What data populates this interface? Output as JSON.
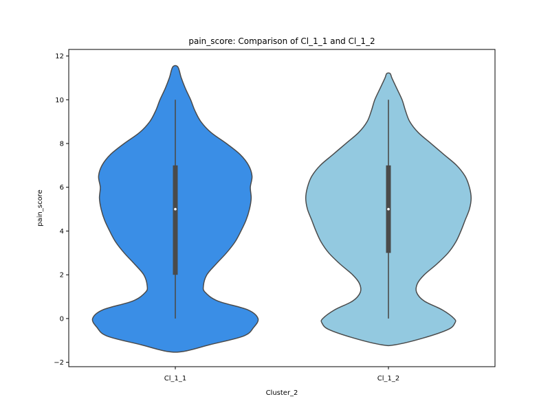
{
  "chart_data": {
    "type": "violin",
    "title": "pain_score: Comparison of Cl_1_1 and Cl_1_2",
    "xlabel": "Cluster_2",
    "ylabel": "pain_score",
    "ylim": [
      -2.2,
      12.3
    ],
    "yticks": [
      -2,
      0,
      2,
      4,
      6,
      8,
      10,
      12
    ],
    "yticklabels": [
      "−2",
      "0",
      "2",
      "4",
      "6",
      "8",
      "10",
      "12"
    ],
    "categories": [
      "Cl_1_1",
      "Cl_1_2"
    ],
    "grid": false,
    "violins": [
      {
        "category": "Cl_1_1",
        "color": "#3a8ee6",
        "edge_color": "#4a4a4a",
        "stats": {
          "min": 0,
          "q1": 2,
          "median": 5,
          "q3": 7,
          "max": 10
        },
        "density_profile": [
          [
            -1.5,
            0.1
          ],
          [
            -1.2,
            0.4
          ],
          [
            -0.8,
            0.8
          ],
          [
            -0.4,
            0.92
          ],
          [
            0.0,
            0.97
          ],
          [
            0.4,
            0.85
          ],
          [
            0.8,
            0.5
          ],
          [
            1.2,
            0.35
          ],
          [
            1.5,
            0.33
          ],
          [
            2.0,
            0.37
          ],
          [
            2.5,
            0.48
          ],
          [
            3.0,
            0.6
          ],
          [
            3.5,
            0.7
          ],
          [
            4.0,
            0.77
          ],
          [
            4.5,
            0.83
          ],
          [
            5.0,
            0.87
          ],
          [
            5.5,
            0.89
          ],
          [
            6.0,
            0.88
          ],
          [
            6.5,
            0.9
          ],
          [
            7.0,
            0.86
          ],
          [
            7.5,
            0.76
          ],
          [
            8.0,
            0.6
          ],
          [
            8.5,
            0.42
          ],
          [
            9.0,
            0.3
          ],
          [
            9.5,
            0.23
          ],
          [
            10.0,
            0.18
          ],
          [
            10.5,
            0.12
          ],
          [
            11.0,
            0.07
          ],
          [
            11.5,
            0.03
          ]
        ]
      },
      {
        "category": "Cl_1_2",
        "color": "#93c9e0",
        "edge_color": "#4a4a4a",
        "stats": {
          "min": 0,
          "q1": 3,
          "median": 5,
          "q3": 7,
          "max": 10
        },
        "density_profile": [
          [
            -1.2,
            0.08
          ],
          [
            -0.9,
            0.4
          ],
          [
            -0.5,
            0.7
          ],
          [
            -0.2,
            0.78
          ],
          [
            0.0,
            0.77
          ],
          [
            0.4,
            0.63
          ],
          [
            0.8,
            0.42
          ],
          [
            1.2,
            0.33
          ],
          [
            1.6,
            0.34
          ],
          [
            2.0,
            0.42
          ],
          [
            2.5,
            0.57
          ],
          [
            3.0,
            0.7
          ],
          [
            3.5,
            0.79
          ],
          [
            4.0,
            0.85
          ],
          [
            4.5,
            0.9
          ],
          [
            5.0,
            0.95
          ],
          [
            5.5,
            0.97
          ],
          [
            6.0,
            0.95
          ],
          [
            6.5,
            0.9
          ],
          [
            7.0,
            0.8
          ],
          [
            7.5,
            0.65
          ],
          [
            8.0,
            0.5
          ],
          [
            8.5,
            0.35
          ],
          [
            9.0,
            0.25
          ],
          [
            9.5,
            0.2
          ],
          [
            10.0,
            0.16
          ],
          [
            10.5,
            0.1
          ],
          [
            11.0,
            0.04
          ],
          [
            11.2,
            0.02
          ]
        ]
      }
    ]
  }
}
